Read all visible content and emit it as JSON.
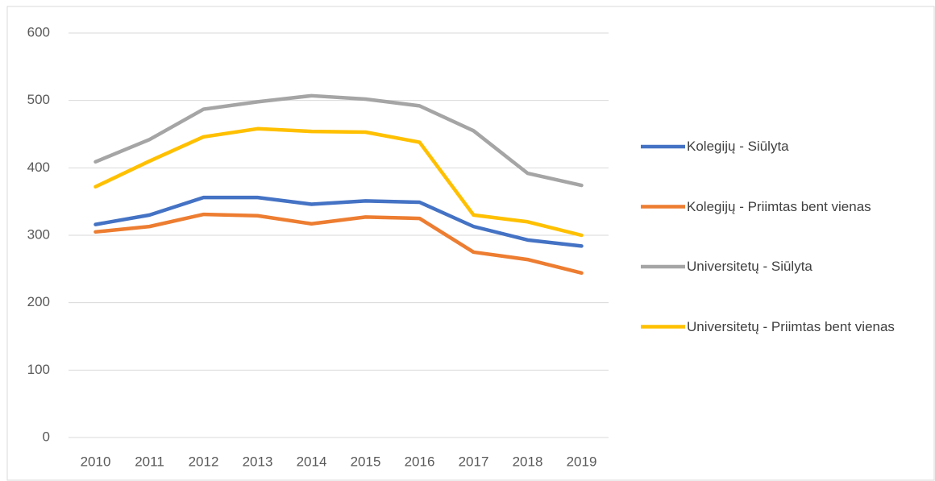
{
  "chart_data": {
    "type": "line",
    "categories": [
      "2010",
      "2011",
      "2012",
      "2013",
      "2014",
      "2015",
      "2016",
      "2017",
      "2018",
      "2019"
    ],
    "series": [
      {
        "name": "Kolegijų - Siūlyta",
        "color": "#4472c4",
        "values": [
          316,
          330,
          356,
          356,
          346,
          351,
          349,
          313,
          293,
          284
        ]
      },
      {
        "name": "Kolegijų - Priimtas bent vienas",
        "color": "#ed7d31",
        "values": [
          305,
          313,
          331,
          329,
          317,
          327,
          325,
          275,
          264,
          244
        ]
      },
      {
        "name": "Universitetų - Siūlyta",
        "color": "#a5a5a5",
        "values": [
          409,
          442,
          487,
          498,
          507,
          502,
          492,
          455,
          392,
          374
        ]
      },
      {
        "name": "Universitetų - Priimtas bent vienas",
        "color": "#ffc000",
        "values": [
          372,
          410,
          446,
          458,
          454,
          453,
          438,
          330,
          320,
          300
        ]
      }
    ],
    "ylim": [
      0,
      600
    ],
    "yticks": [
      0,
      100,
      200,
      300,
      400,
      500,
      600
    ],
    "grid": true,
    "legend": "right"
  }
}
